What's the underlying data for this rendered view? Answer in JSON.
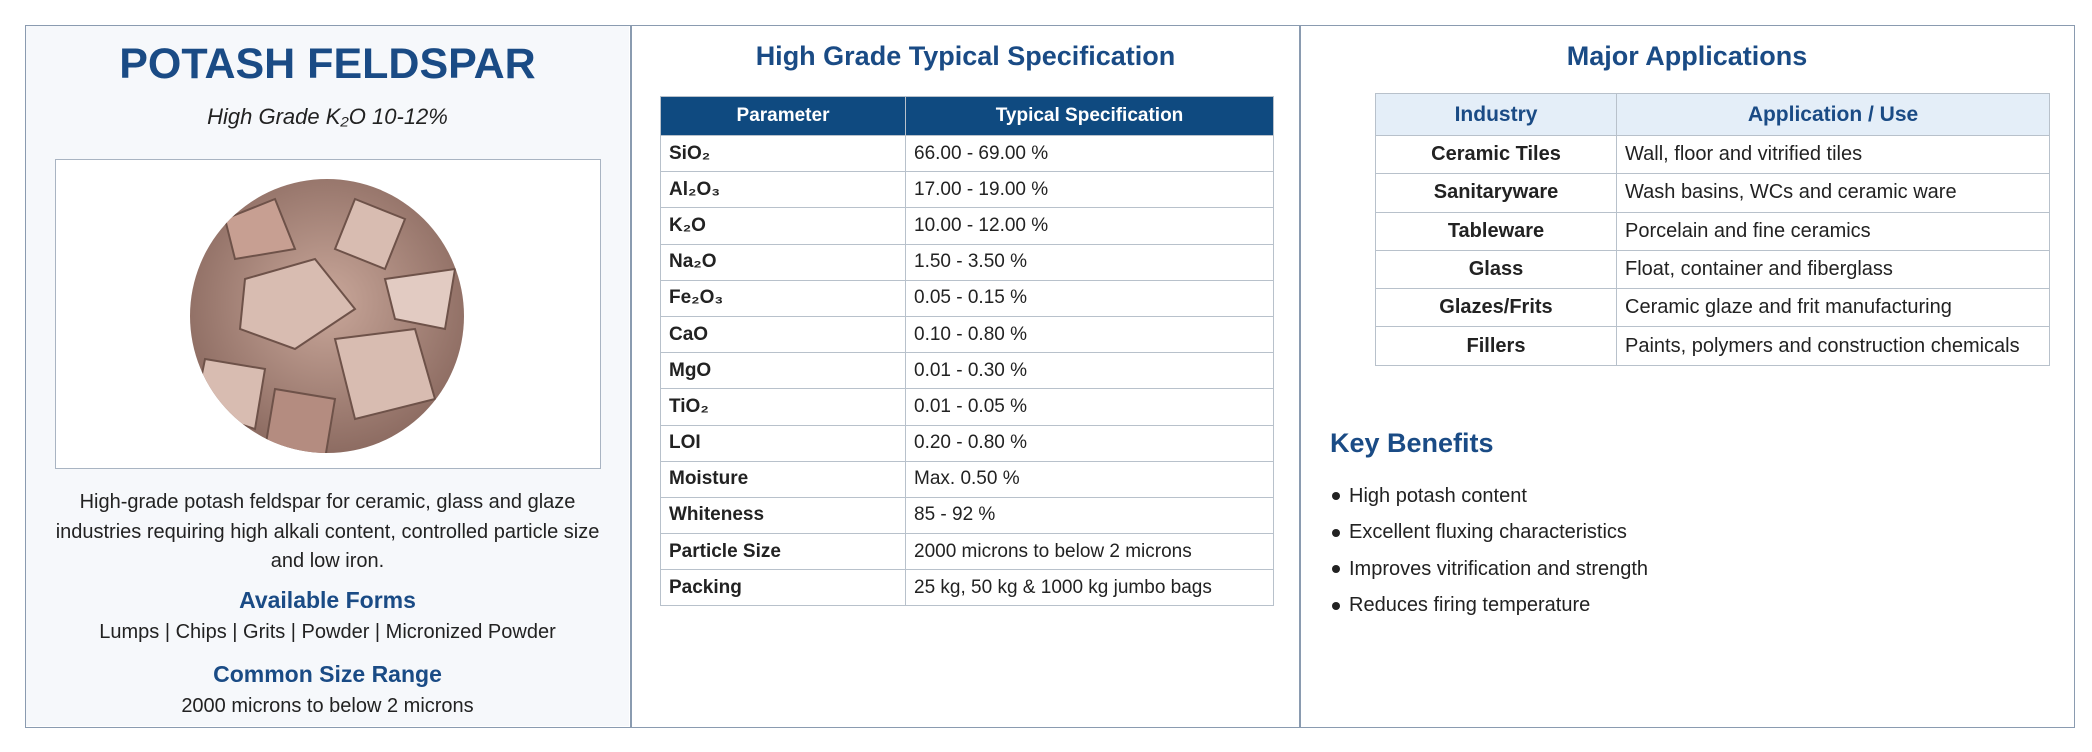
{
  "header": {
    "title": "POTASH FELDSPAR",
    "subtitle": "High Grade K₂O 10-12%"
  },
  "description": "High-grade potash feldspar for ceramic, glass and glaze industries requiring high alkali content, controlled particle size and low iron.",
  "forms": {
    "title": "Available Forms",
    "text": "Lumps | Chips | Grits | Powder | Micronized Powder"
  },
  "size_range": {
    "title": "Common Size Range",
    "text": "2000 microns to below 2 microns"
  },
  "spec": {
    "title": "High Grade Typical Specification",
    "columns": [
      "Parameter",
      "Typical Specification"
    ],
    "rows": [
      [
        "SiO₂",
        "66.00 - 69.00 %"
      ],
      [
        "Al₂O₃",
        "17.00 - 19.00 %"
      ],
      [
        "K₂O",
        "10.00 - 12.00 %"
      ],
      [
        "Na₂O",
        "1.50 - 3.50 %"
      ],
      [
        "Fe₂O₃",
        "0.05 - 0.15 %"
      ],
      [
        "CaO",
        "0.10 - 0.80 %"
      ],
      [
        "MgO",
        "0.01 - 0.30 %"
      ],
      [
        "TiO₂",
        "0.01 - 0.05 %"
      ],
      [
        "LOI",
        "0.20 - 0.80 %"
      ],
      [
        "Moisture",
        "Max. 0.50 %"
      ],
      [
        "Whiteness",
        "85 - 92 %"
      ],
      [
        "Particle Size",
        "2000 microns to below 2 microns"
      ],
      [
        "Packing",
        "25 kg, 50 kg & 1000 kg jumbo bags"
      ]
    ]
  },
  "applications": {
    "title": "Major Applications",
    "columns": [
      "Industry",
      "Application / Use"
    ],
    "rows": [
      [
        "Ceramic Tiles",
        "Wall, floor and vitrified tiles"
      ],
      [
        "Sanitaryware",
        "Wash basins, WCs and ceramic ware"
      ],
      [
        "Tableware",
        "Porcelain and fine ceramics"
      ],
      [
        "Glass",
        "Float, container and fiberglass"
      ],
      [
        "Glazes/Frits",
        "Ceramic glaze and frit manufacturing"
      ],
      [
        "Fillers",
        "Paints, polymers and construction chemicals"
      ]
    ]
  },
  "benefits": {
    "title": "Key Benefits",
    "items": [
      "High potash content",
      "Excellent fluxing characteristics",
      "Improves vitrification and strength",
      "Reduces firing temperature"
    ]
  }
}
